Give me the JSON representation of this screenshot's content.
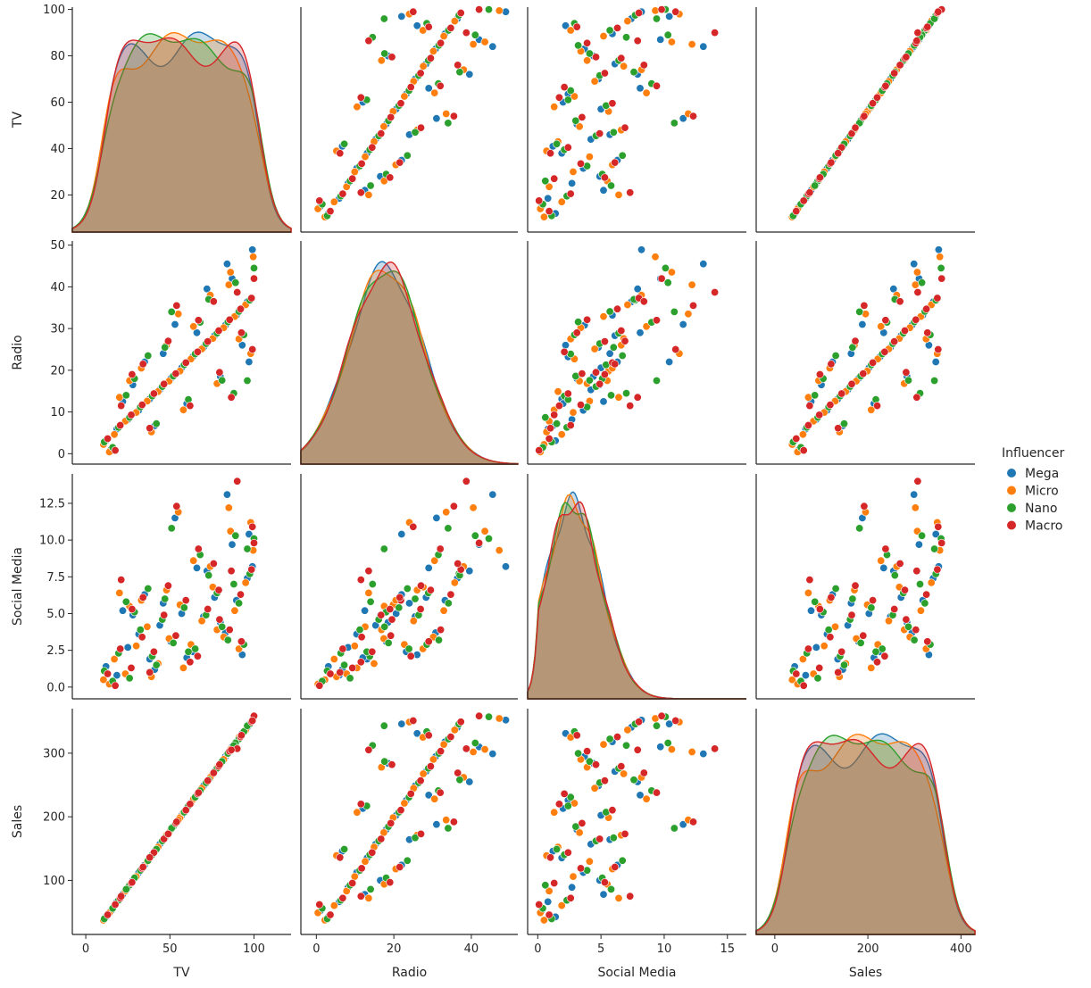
{
  "chart_data": {
    "type": "scatter",
    "variables": [
      "TV",
      "Radio",
      "Social Media",
      "Sales"
    ],
    "axes": {
      "TV": {
        "label": "TV",
        "range": [
          -8,
          122
        ],
        "xticks": [
          0,
          50,
          100
        ],
        "yticks": [
          20,
          40,
          60,
          80,
          100
        ],
        "yrange": [
          4,
          101
        ]
      },
      "Radio": {
        "label": "Radio",
        "range": [
          -4,
          52
        ],
        "xticks": [
          0,
          20,
          40
        ],
        "yticks": [
          0,
          10,
          20,
          30,
          40,
          50
        ],
        "yrange": [
          -2.5,
          51
        ]
      },
      "Social Media": {
        "label": "Social Media",
        "range": [
          -0.8,
          16.5
        ],
        "xticks": [
          0,
          5,
          10,
          15
        ],
        "yticks": [
          0.0,
          2.5,
          5.0,
          7.5,
          10.0,
          12.5
        ],
        "ytick_labels": [
          "0.0",
          "2.5",
          "5.0",
          "7.5",
          "10.0",
          "12.5"
        ],
        "yrange": [
          -0.8,
          14.5
        ]
      },
      "Sales": {
        "label": "Sales",
        "range": [
          -40,
          430
        ],
        "xticks": [
          0,
          200,
          400
        ],
        "yticks": [
          100,
          200,
          300
        ],
        "yrange": [
          15,
          370
        ]
      }
    },
    "legend": {
      "title": "Influencer",
      "placement": "center-right",
      "entries": [
        "Mega",
        "Micro",
        "Nano",
        "Macro"
      ]
    },
    "series_colors": {
      "Mega": "#1f77b4",
      "Micro": "#ff7f0e",
      "Nano": "#2ca02c",
      "Macro": "#d62728"
    },
    "kde_fill": "#a29a82",
    "series": [
      {
        "name": "Mega",
        "points": [
          [
            12.0,
            3.1,
            1.4,
            42.6
          ],
          [
            18.5,
            5.9,
            0.8,
            66.3
          ],
          [
            25.0,
            8.2,
            2.7,
            89.1
          ],
          [
            31.5,
            10.4,
            3.6,
            112.4
          ],
          [
            38.0,
            13.1,
            1.9,
            135.2
          ],
          [
            44.0,
            15.3,
            4.2,
            156.8
          ],
          [
            50.5,
            18.0,
            3.1,
            179.7
          ],
          [
            57.0,
            20.6,
            5.0,
            202.3
          ],
          [
            63.5,
            23.2,
            2.4,
            225.9
          ],
          [
            70.0,
            25.5,
            4.8,
            248.6
          ],
          [
            76.5,
            28.3,
            6.1,
            271.2
          ],
          [
            83.0,
            30.8,
            3.7,
            294.8
          ],
          [
            89.5,
            33.2,
            5.9,
            317.9
          ],
          [
            96.0,
            36.4,
            7.4,
            340.5
          ],
          [
            99.0,
            48.9,
            8.2,
            352.1
          ],
          [
            22.0,
            12.5,
            5.2,
            78.0
          ],
          [
            41.0,
            6.7,
            1.2,
            146.0
          ],
          [
            66.0,
            29.0,
            8.1,
            234.0
          ],
          [
            80.0,
            18.5,
            4.4,
            284.0
          ],
          [
            93.0,
            26.0,
            2.2,
            331.0
          ],
          [
            15.0,
            1.0,
            0.3,
            52.0
          ],
          [
            53.0,
            31.0,
            11.5,
            188.0
          ],
          [
            72.0,
            39.5,
            7.9,
            255.0
          ],
          [
            35.0,
            22.0,
            6.3,
            124.0
          ],
          [
            87.0,
            42.0,
            9.7,
            310.0
          ],
          [
            60.0,
            12.0,
            2.0,
            213.0
          ],
          [
            28.0,
            16.5,
            4.9,
            100.0
          ],
          [
            97.0,
            22.0,
            10.4,
            346.0
          ],
          [
            46.0,
            24.0,
            5.7,
            164.0
          ],
          [
            84.0,
            45.5,
            13.1,
            299.0
          ]
        ]
      },
      {
        "name": "Micro",
        "points": [
          [
            10.5,
            2.2,
            0.5,
            37.4
          ],
          [
            17.0,
            4.6,
            1.9,
            60.5
          ],
          [
            23.5,
            7.8,
            0.9,
            83.2
          ],
          [
            30.0,
            9.9,
            2.8,
            106.1
          ],
          [
            36.5,
            12.6,
            4.1,
            129.8
          ],
          [
            43.0,
            14.9,
            1.6,
            152.4
          ],
          [
            49.5,
            17.4,
            3.3,
            175.1
          ],
          [
            56.0,
            19.8,
            5.6,
            198.7
          ],
          [
            62.5,
            22.7,
            2.9,
            221.3
          ],
          [
            69.0,
            25.1,
            4.5,
            244.9
          ],
          [
            75.5,
            27.6,
            6.8,
            267.5
          ],
          [
            82.0,
            30.2,
            3.4,
            290.2
          ],
          [
            88.5,
            32.9,
            5.2,
            313.8
          ],
          [
            95.0,
            35.7,
            7.1,
            336.4
          ],
          [
            99.5,
            47.2,
            9.3,
            354.6
          ],
          [
            20.0,
            13.5,
            6.4,
            72.0
          ],
          [
            39.0,
            5.2,
            0.7,
            139.0
          ],
          [
            64.0,
            30.5,
            8.6,
            228.0
          ],
          [
            78.0,
            16.8,
            3.9,
            278.0
          ],
          [
            91.0,
            27.5,
            2.6,
            325.0
          ],
          [
            14.0,
            0.4,
            0.2,
            49.0
          ],
          [
            55.0,
            33.5,
            11.9,
            195.0
          ],
          [
            74.0,
            38.0,
            8.2,
            262.0
          ],
          [
            33.0,
            20.5,
            5.9,
            118.0
          ],
          [
            86.0,
            43.5,
            10.6,
            306.0
          ],
          [
            58.0,
            10.5,
            1.3,
            207.0
          ],
          [
            26.0,
            17.5,
            5.5,
            94.0
          ],
          [
            98.0,
            24.0,
            11.2,
            349.0
          ],
          [
            48.0,
            26.0,
            6.6,
            171.0
          ],
          [
            85.0,
            40.5,
            12.2,
            302.0
          ]
        ]
      },
      {
        "name": "Nano",
        "points": [
          [
            11.0,
            2.8,
            1.1,
            39.5
          ],
          [
            19.5,
            6.3,
            2.3,
            68.8
          ],
          [
            26.0,
            8.7,
            0.6,
            92.4
          ],
          [
            32.5,
            11.2,
            3.9,
            115.7
          ],
          [
            39.5,
            13.8,
            2.1,
            140.3
          ],
          [
            45.5,
            16.1,
            4.6,
            161.9
          ],
          [
            52.0,
            18.6,
            3.0,
            184.6
          ],
          [
            58.5,
            21.3,
            5.4,
            207.2
          ],
          [
            65.0,
            23.9,
            2.6,
            230.8
          ],
          [
            71.5,
            26.4,
            4.9,
            253.5
          ],
          [
            78.0,
            28.9,
            6.4,
            276.1
          ],
          [
            84.5,
            31.6,
            3.2,
            299.7
          ],
          [
            91.0,
            34.1,
            5.7,
            322.3
          ],
          [
            97.5,
            36.8,
            7.7,
            345.9
          ],
          [
            100.0,
            44.5,
            10.1,
            357.2
          ],
          [
            24.0,
            14.0,
            5.8,
            86.0
          ],
          [
            42.0,
            7.2,
            1.5,
            149.0
          ],
          [
            68.0,
            31.5,
            9.0,
            241.0
          ],
          [
            81.0,
            17.6,
            4.1,
            287.0
          ],
          [
            94.0,
            28.5,
            2.9,
            334.0
          ],
          [
            16.0,
            1.5,
            0.4,
            56.0
          ],
          [
            51.0,
            34.0,
            10.8,
            182.0
          ],
          [
            73.0,
            37.0,
            7.6,
            258.0
          ],
          [
            37.0,
            23.5,
            6.7,
            131.0
          ],
          [
            89.0,
            41.0,
            10.3,
            316.0
          ],
          [
            61.0,
            13.0,
            2.4,
            217.0
          ],
          [
            29.0,
            18.0,
            5.1,
            104.0
          ],
          [
            96.0,
            17.5,
            9.4,
            343.0
          ],
          [
            47.0,
            25.5,
            6.0,
            167.0
          ],
          [
            88.0,
            14.5,
            7.0,
            312.0
          ]
        ]
      },
      {
        "name": "Macro",
        "points": [
          [
            13.0,
            3.6,
            0.9,
            45.9
          ],
          [
            20.5,
            6.8,
            2.6,
            72.1
          ],
          [
            27.0,
            9.3,
            1.3,
            95.7
          ],
          [
            33.5,
            11.7,
            3.4,
            119.0
          ],
          [
            40.5,
            14.4,
            2.4,
            143.6
          ],
          [
            46.5,
            16.7,
            4.9,
            165.2
          ],
          [
            53.5,
            19.2,
            3.5,
            189.9
          ],
          [
            59.5,
            21.8,
            5.9,
            210.5
          ],
          [
            66.5,
            24.4,
            2.1,
            236.1
          ],
          [
            72.5,
            26.9,
            5.3,
            256.8
          ],
          [
            79.0,
            29.5,
            6.6,
            279.4
          ],
          [
            85.5,
            32.1,
            3.9,
            303.0
          ],
          [
            92.0,
            34.7,
            6.3,
            325.6
          ],
          [
            98.5,
            37.3,
            8.0,
            349.2
          ],
          [
            100.0,
            42.0,
            9.8,
            358.5
          ],
          [
            21.0,
            11.5,
            7.3,
            75.0
          ],
          [
            38.0,
            6.1,
            1.0,
            136.0
          ],
          [
            67.0,
            32.0,
            9.4,
            238.0
          ],
          [
            79.5,
            19.5,
            4.6,
            282.0
          ],
          [
            92.5,
            29.0,
            3.1,
            328.0
          ],
          [
            17.5,
            0.8,
            0.1,
            62.0
          ],
          [
            54.0,
            35.5,
            12.3,
            192.0
          ],
          [
            76.0,
            36.5,
            8.4,
            269.0
          ],
          [
            34.0,
            21.5,
            6.1,
            121.0
          ],
          [
            90.0,
            38.7,
            14.0,
            307.0
          ],
          [
            62.0,
            11.5,
            1.7,
            220.0
          ],
          [
            27.5,
            19.0,
            5.3,
            97.0
          ],
          [
            99.0,
            25.0,
            10.9,
            351.0
          ],
          [
            49.0,
            27.0,
            6.9,
            173.0
          ],
          [
            86.5,
            13.5,
            7.9,
            305.0
          ]
        ]
      }
    ]
  }
}
